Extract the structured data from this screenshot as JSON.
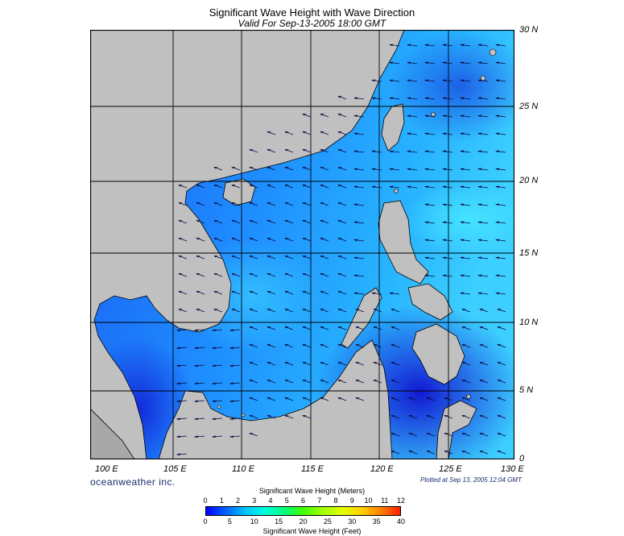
{
  "title": "Significant Wave Height with Wave Direction",
  "subtitle": "Valid For Sep-13-2005 18:00 GMT",
  "latitude_labels": [
    "30 N",
    "25 N",
    "20 N",
    "15 N",
    "10 N",
    "5 N",
    "0"
  ],
  "longitude_labels": [
    "100 E",
    "105 E",
    "110 E",
    "115 E",
    "120 E",
    "125 E",
    "130 E"
  ],
  "logo": "oceanweather inc.",
  "plotted": "Plotted at Sep 13, 2005 12:04 GMT",
  "colorbar": {
    "meters_title": "Significant Wave Height (Meters)",
    "feet_title": "Significant Wave Height (Feet)",
    "meters_ticks": [
      "0",
      "1",
      "2",
      "3",
      "4",
      "5",
      "6",
      "7",
      "8",
      "9",
      "10",
      "11",
      "12"
    ],
    "feet_ticks": [
      "0",
      "5",
      "10",
      "15",
      "20",
      "25",
      "30",
      "35",
      "40"
    ],
    "colors": [
      "#0000ff",
      "#0060ff",
      "#00c0ff",
      "#00ffe0",
      "#00ff80",
      "#40ff00",
      "#a0ff00",
      "#e0ff00",
      "#ffd000",
      "#ff8000",
      "#ff2000"
    ]
  },
  "colors": {
    "land": "#c0c0c0",
    "sea_low": "#1e32e6",
    "sea_mid": "#1e78ff",
    "sea_high": "#1ec8ff",
    "grid": "#000000"
  }
}
